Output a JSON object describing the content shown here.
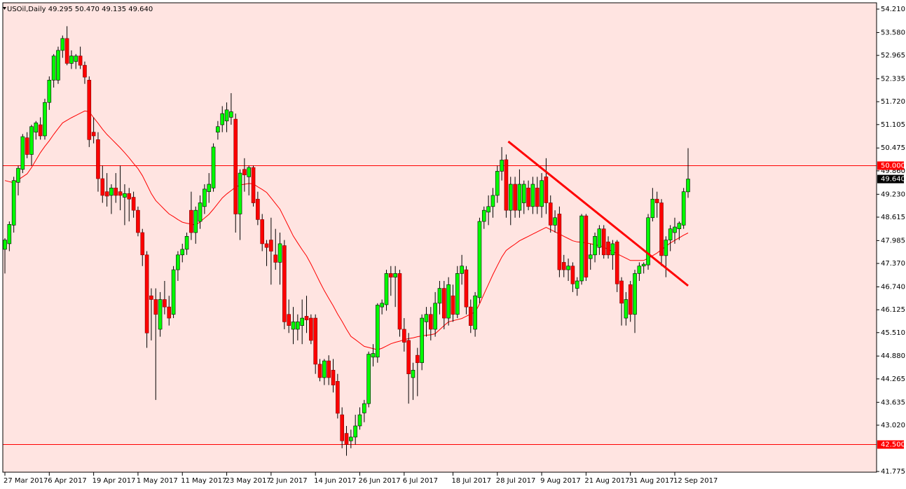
{
  "chart_data": {
    "type": "candlestick",
    "title": "USOil,Daily  49.295 50.470 49.135 49.640",
    "background": "#ffe4e1",
    "up_color": "#00ff00",
    "down_color": "#ff0000",
    "wick_color": "#000000",
    "ylim": [
      41.775,
      54.21
    ],
    "yticks": [
      {
        "value": 54.21,
        "label": "54.210"
      },
      {
        "value": 53.58,
        "label": "53.580"
      },
      {
        "value": 52.965,
        "label": "52.965"
      },
      {
        "value": 52.335,
        "label": "52.335"
      },
      {
        "value": 51.72,
        "label": "51.720"
      },
      {
        "value": 51.105,
        "label": "51.105"
      },
      {
        "value": 50.475,
        "label": "50.475"
      },
      {
        "value": 49.86,
        "label": "49.860"
      },
      {
        "value": 49.23,
        "label": "49.230"
      },
      {
        "value": 48.615,
        "label": "48.615"
      },
      {
        "value": 47.985,
        "label": "47.985"
      },
      {
        "value": 47.37,
        "label": "47.370"
      },
      {
        "value": 46.74,
        "label": "46.740"
      },
      {
        "value": 46.125,
        "label": "46.125"
      },
      {
        "value": 45.51,
        "label": "45.510"
      },
      {
        "value": 44.88,
        "label": "44.880"
      },
      {
        "value": 44.265,
        "label": "44.265"
      },
      {
        "value": 43.635,
        "label": "43.635"
      },
      {
        "value": 43.02,
        "label": "43.020"
      },
      {
        "value": 41.775,
        "label": "41.775"
      }
    ],
    "categories": [
      "27 Mar 2017",
      null,
      null,
      null,
      null,
      null,
      null,
      null,
      null,
      null,
      "6 Apr 2017",
      null,
      null,
      null,
      null,
      null,
      null,
      null,
      null,
      null,
      "19 Apr 2017",
      null,
      null,
      null,
      null,
      null,
      null,
      null,
      null,
      null,
      "1 May 2017",
      null,
      null,
      null,
      null,
      null,
      null,
      null,
      null,
      null,
      "11 May 2017",
      null,
      null,
      null,
      null,
      null,
      null,
      null,
      null,
      null,
      "23 May 2017",
      null,
      null,
      null,
      null,
      null,
      null,
      null,
      null,
      null,
      "2 Jun 2017",
      null,
      null,
      null,
      null,
      null,
      null,
      null,
      null,
      null,
      "14 Jun 2017",
      null,
      null,
      null,
      null,
      null,
      null,
      null,
      null,
      null,
      "26 Jun 2017",
      null,
      null,
      null,
      null,
      null,
      null,
      null,
      null,
      null,
      "6 Jul 2017",
      null,
      null,
      null,
      null,
      null,
      null,
      null,
      null,
      null,
      null,
      "18 Jul 2017",
      null,
      null,
      null,
      null,
      null,
      null,
      null,
      null,
      null,
      "28 Jul 2017",
      null,
      null,
      null,
      null,
      null,
      null,
      null,
      null,
      null,
      "9 Aug 2017",
      null,
      null,
      null,
      null,
      null,
      null,
      null,
      null,
      null,
      "21 Aug 2017",
      null,
      null,
      null,
      null,
      null,
      null,
      null,
      null,
      null,
      "31 Aug 2017",
      null,
      null,
      null,
      null,
      null,
      null,
      null,
      null,
      null,
      "12 Sep 2017",
      null,
      null,
      null
    ],
    "candles": [
      [
        47.75,
        48.05,
        47.1,
        48.0
      ],
      [
        47.9,
        48.5,
        47.7,
        48.42
      ],
      [
        48.4,
        49.7,
        48.2,
        49.6
      ],
      [
        49.55,
        50.0,
        49.2,
        49.93
      ],
      [
        49.9,
        50.85,
        49.8,
        50.78
      ],
      [
        50.75,
        50.9,
        50.2,
        50.3
      ],
      [
        50.3,
        51.1,
        50.0,
        51.05
      ],
      [
        50.9,
        51.2,
        50.7,
        51.15
      ],
      [
        51.1,
        51.3,
        50.7,
        50.8
      ],
      [
        50.8,
        51.8,
        50.7,
        51.7
      ],
      [
        51.7,
        52.4,
        51.5,
        52.3
      ],
      [
        52.3,
        53.0,
        52.1,
        52.95
      ],
      [
        52.3,
        53.2,
        52.2,
        53.1
      ],
      [
        53.1,
        53.5,
        52.9,
        53.42
      ],
      [
        53.42,
        53.75,
        52.7,
        52.75
      ],
      [
        52.75,
        53.1,
        52.6,
        52.95
      ],
      [
        52.8,
        53.0,
        52.6,
        52.95
      ],
      [
        52.95,
        53.2,
        52.6,
        52.7
      ],
      [
        52.7,
        52.8,
        52.2,
        52.38
      ],
      [
        52.3,
        52.4,
        50.5,
        50.7
      ],
      [
        50.9,
        51.3,
        50.6,
        50.8
      ],
      [
        50.7,
        50.9,
        49.3,
        49.65
      ],
      [
        49.65,
        50.0,
        49.0,
        49.2
      ],
      [
        49.3,
        49.8,
        48.9,
        49.18
      ],
      [
        49.2,
        49.5,
        48.7,
        49.4
      ],
      [
        49.4,
        49.8,
        49.0,
        49.2
      ],
      [
        49.3,
        50.0,
        48.8,
        49.2
      ],
      [
        49.15,
        49.5,
        48.4,
        49.25
      ],
      [
        49.25,
        49.4,
        48.5,
        49.1
      ],
      [
        49.15,
        49.3,
        48.6,
        48.8
      ],
      [
        48.8,
        48.9,
        48.1,
        48.2
      ],
      [
        48.2,
        48.3,
        47.3,
        47.6
      ],
      [
        47.6,
        47.7,
        45.1,
        45.5
      ],
      [
        46.5,
        46.7,
        45.3,
        46.4
      ],
      [
        46.4,
        46.7,
        43.7,
        46.0
      ],
      [
        45.6,
        46.6,
        45.4,
        46.4
      ],
      [
        46.4,
        46.9,
        46.0,
        46.2
      ],
      [
        46.2,
        46.5,
        45.7,
        45.9
      ],
      [
        46.0,
        47.3,
        45.9,
        47.2
      ],
      [
        47.2,
        47.7,
        46.9,
        47.6
      ],
      [
        47.6,
        47.9,
        47.4,
        47.75
      ],
      [
        47.75,
        48.2,
        47.6,
        48.1
      ],
      [
        48.8,
        49.3,
        48.0,
        48.2
      ],
      [
        48.2,
        48.9,
        47.9,
        48.8
      ],
      [
        48.5,
        49.2,
        48.3,
        49.0
      ],
      [
        48.9,
        49.5,
        48.7,
        49.37
      ],
      [
        49.3,
        49.8,
        49.0,
        49.5
      ],
      [
        49.4,
        50.6,
        49.3,
        50.5
      ],
      [
        50.9,
        51.2,
        50.7,
        51.05
      ],
      [
        51.1,
        51.6,
        50.9,
        51.4
      ],
      [
        51.2,
        51.7,
        50.9,
        51.5
      ],
      [
        51.3,
        51.95,
        51.1,
        51.45
      ],
      [
        51.25,
        51.4,
        48.2,
        48.7
      ],
      [
        48.7,
        49.9,
        48.0,
        49.8
      ],
      [
        49.9,
        50.2,
        49.3,
        49.75
      ],
      [
        49.7,
        50.0,
        49.2,
        49.95
      ],
      [
        49.95,
        50.0,
        48.9,
        49.0
      ],
      [
        49.1,
        49.3,
        48.4,
        48.55
      ],
      [
        48.55,
        48.7,
        47.7,
        47.9
      ],
      [
        47.9,
        48.0,
        47.3,
        47.8
      ],
      [
        48.0,
        48.6,
        46.8,
        47.7
      ],
      [
        47.6,
        48.3,
        47.2,
        47.4
      ],
      [
        47.4,
        48.2,
        46.8,
        47.9
      ],
      [
        47.85,
        48.0,
        45.6,
        45.8
      ],
      [
        46.0,
        46.4,
        45.5,
        45.7
      ],
      [
        45.6,
        46.2,
        45.2,
        45.8
      ],
      [
        45.6,
        46.0,
        45.3,
        45.8
      ],
      [
        45.7,
        46.4,
        45.2,
        45.9
      ],
      [
        45.95,
        46.5,
        45.5,
        45.85
      ],
      [
        45.9,
        46.0,
        45.2,
        45.3
      ],
      [
        45.9,
        46.0,
        44.4,
        44.66
      ],
      [
        44.66,
        44.8,
        44.2,
        44.3
      ],
      [
        44.3,
        44.8,
        44.1,
        44.75
      ],
      [
        44.75,
        44.9,
        44.1,
        44.3
      ],
      [
        44.5,
        44.8,
        43.9,
        44.1
      ],
      [
        44.2,
        44.4,
        43.2,
        43.34
      ],
      [
        43.3,
        43.5,
        42.4,
        42.6
      ],
      [
        42.8,
        43.0,
        42.2,
        42.5
      ],
      [
        42.6,
        42.9,
        42.4,
        42.7
      ],
      [
        42.7,
        43.3,
        42.5,
        43.0
      ],
      [
        43.0,
        43.5,
        42.9,
        43.3
      ],
      [
        43.35,
        43.7,
        43.1,
        43.6
      ],
      [
        43.6,
        45.0,
        43.5,
        44.93
      ],
      [
        44.85,
        45.2,
        44.6,
        44.95
      ],
      [
        44.85,
        46.3,
        44.7,
        46.25
      ],
      [
        46.2,
        46.4,
        46.0,
        46.3
      ],
      [
        46.26,
        47.2,
        46.1,
        47.1
      ],
      [
        47.1,
        47.3,
        46.5,
        47.0
      ],
      [
        47.0,
        47.3,
        46.2,
        47.1
      ],
      [
        47.1,
        47.2,
        45.4,
        45.6
      ],
      [
        45.6,
        45.9,
        45.0,
        45.25
      ],
      [
        45.3,
        45.5,
        43.6,
        44.4
      ],
      [
        44.3,
        44.7,
        43.7,
        44.5
      ],
      [
        44.9,
        45.1,
        43.8,
        44.7
      ],
      [
        44.7,
        46.0,
        44.5,
        45.9
      ],
      [
        45.8,
        46.2,
        45.4,
        46.0
      ],
      [
        46.0,
        46.2,
        45.3,
        45.6
      ],
      [
        45.6,
        46.6,
        45.4,
        46.3
      ],
      [
        46.3,
        46.9,
        46.0,
        46.7
      ],
      [
        46.7,
        46.9,
        45.6,
        45.9
      ],
      [
        45.9,
        47.0,
        45.7,
        46.8
      ],
      [
        46.5,
        46.8,
        45.8,
        46.0
      ],
      [
        46.0,
        47.3,
        45.9,
        47.1
      ],
      [
        47.1,
        47.6,
        46.8,
        47.3
      ],
      [
        47.2,
        47.3,
        46.0,
        46.2
      ],
      [
        46.2,
        46.4,
        45.5,
        45.7
      ],
      [
        45.6,
        46.6,
        45.4,
        46.5
      ],
      [
        46.45,
        48.6,
        46.3,
        48.5
      ],
      [
        48.5,
        48.9,
        48.3,
        48.8
      ],
      [
        48.75,
        49.2,
        48.4,
        48.9
      ],
      [
        48.9,
        49.4,
        48.6,
        49.2
      ],
      [
        49.2,
        50.0,
        49.0,
        49.85
      ],
      [
        49.85,
        50.5,
        49.6,
        50.15
      ],
      [
        50.16,
        50.3,
        48.6,
        48.8
      ],
      [
        48.8,
        49.7,
        48.4,
        49.5
      ],
      [
        49.5,
        49.7,
        48.6,
        48.8
      ],
      [
        48.8,
        49.9,
        48.6,
        49.5
      ],
      [
        49.0,
        49.6,
        48.7,
        49.5
      ],
      [
        49.4,
        49.6,
        48.8,
        48.9
      ],
      [
        48.9,
        49.7,
        48.7,
        49.5
      ],
      [
        49.4,
        49.7,
        48.7,
        48.9
      ],
      [
        48.9,
        49.8,
        48.6,
        49.6
      ],
      [
        49.7,
        50.2,
        48.7,
        49.0
      ],
      [
        49.0,
        49.2,
        48.2,
        48.4
      ],
      [
        48.4,
        48.8,
        48.2,
        48.6
      ],
      [
        48.7,
        48.9,
        47.0,
        47.2
      ],
      [
        47.4,
        47.6,
        47.0,
        47.2
      ],
      [
        47.2,
        47.5,
        46.9,
        47.3
      ],
      [
        47.3,
        47.4,
        46.6,
        46.82
      ],
      [
        46.7,
        47.0,
        46.5,
        46.9
      ],
      [
        46.9,
        48.7,
        46.8,
        48.65
      ],
      [
        48.65,
        48.7,
        46.9,
        47.0
      ],
      [
        47.5,
        47.9,
        47.2,
        47.6
      ],
      [
        47.6,
        48.2,
        47.4,
        48.1
      ],
      [
        47.8,
        48.4,
        47.6,
        48.3
      ],
      [
        48.3,
        48.4,
        47.5,
        47.6
      ],
      [
        47.95,
        48.1,
        47.5,
        47.6
      ],
      [
        47.6,
        48.0,
        47.2,
        47.9
      ],
      [
        47.95,
        48.0,
        46.6,
        46.82
      ],
      [
        46.9,
        47.0,
        45.7,
        46.3
      ],
      [
        45.9,
        46.6,
        45.7,
        46.4
      ],
      [
        46.8,
        46.9,
        45.8,
        46.0
      ],
      [
        46.0,
        47.2,
        45.5,
        47.1
      ],
      [
        47.1,
        47.4,
        46.9,
        47.3
      ],
      [
        47.3,
        47.4,
        47.1,
        47.35
      ],
      [
        47.33,
        48.7,
        47.2,
        48.6
      ],
      [
        48.6,
        49.4,
        48.5,
        49.1
      ],
      [
        49.1,
        49.3,
        48.6,
        49.0
      ],
      [
        49.0,
        49.1,
        47.3,
        47.58
      ],
      [
        47.58,
        48.1,
        47.0,
        48.0
      ],
      [
        48.0,
        48.4,
        47.7,
        48.3
      ],
      [
        48.2,
        48.6,
        47.9,
        48.35
      ],
      [
        48.3,
        48.5,
        48.0,
        48.45
      ],
      [
        48.4,
        49.4,
        48.3,
        49.3
      ],
      [
        49.295,
        50.47,
        49.135,
        49.64
      ]
    ],
    "moving_average": {
      "color": "#ff0000",
      "values": [
        49.6,
        49.57,
        49.54,
        49.62,
        49.7,
        49.78,
        49.95,
        50.15,
        50.35,
        50.52,
        50.67,
        50.84,
        51.0,
        51.15,
        51.22,
        51.29,
        51.35,
        51.41,
        51.47,
        51.45,
        51.29,
        51.14,
        50.98,
        50.84,
        50.72,
        50.6,
        50.48,
        50.35,
        50.21,
        50.06,
        49.92,
        49.73,
        49.49,
        49.25,
        49.06,
        48.94,
        48.82,
        48.7,
        48.63,
        48.55,
        48.48,
        48.45,
        48.43,
        48.4,
        48.49,
        48.59,
        48.69,
        48.83,
        48.98,
        49.13,
        49.24,
        49.33,
        49.42,
        49.48,
        49.5,
        49.52,
        49.51,
        49.43,
        49.36,
        49.28,
        49.13,
        48.98,
        48.83,
        48.59,
        48.35,
        48.11,
        47.92,
        47.74,
        47.57,
        47.35,
        47.11,
        46.87,
        46.64,
        46.43,
        46.23,
        46.01,
        45.81,
        45.6,
        45.41,
        45.32,
        45.23,
        45.14,
        45.11,
        45.08,
        45.05,
        45.09,
        45.15,
        45.21,
        45.25,
        45.28,
        45.32,
        45.35,
        45.37,
        45.4,
        45.42,
        45.44,
        45.45,
        45.48,
        45.59,
        45.7,
        45.8,
        45.83,
        45.86,
        45.89,
        45.95,
        46.01,
        46.06,
        46.28,
        46.55,
        46.81,
        47.07,
        47.31,
        47.54,
        47.72,
        47.81,
        47.89,
        47.98,
        48.04,
        48.1,
        48.16,
        48.22,
        48.28,
        48.34,
        48.28,
        48.22,
        48.16,
        48.1,
        48.04,
        47.98,
        47.95,
        47.94,
        47.92,
        47.9,
        47.87,
        47.85,
        47.81,
        47.75,
        47.69,
        47.63,
        47.57,
        47.51,
        47.45,
        47.45,
        47.45,
        47.45,
        47.51,
        47.58,
        47.65,
        47.74,
        47.83,
        47.92,
        47.99,
        48.06,
        48.13,
        48.19
      ]
    },
    "hlines": [
      {
        "value": 50,
        "label": "50.000",
        "color": "#ff0000"
      },
      {
        "value": 42.5,
        "label": "42.500",
        "color": "#ff0000"
      }
    ],
    "last_price": {
      "value": 49.64,
      "label": "49.640"
    },
    "trendline": {
      "values": [
        50.65,
        46.77
      ],
      "color": "#ff0000"
    }
  }
}
